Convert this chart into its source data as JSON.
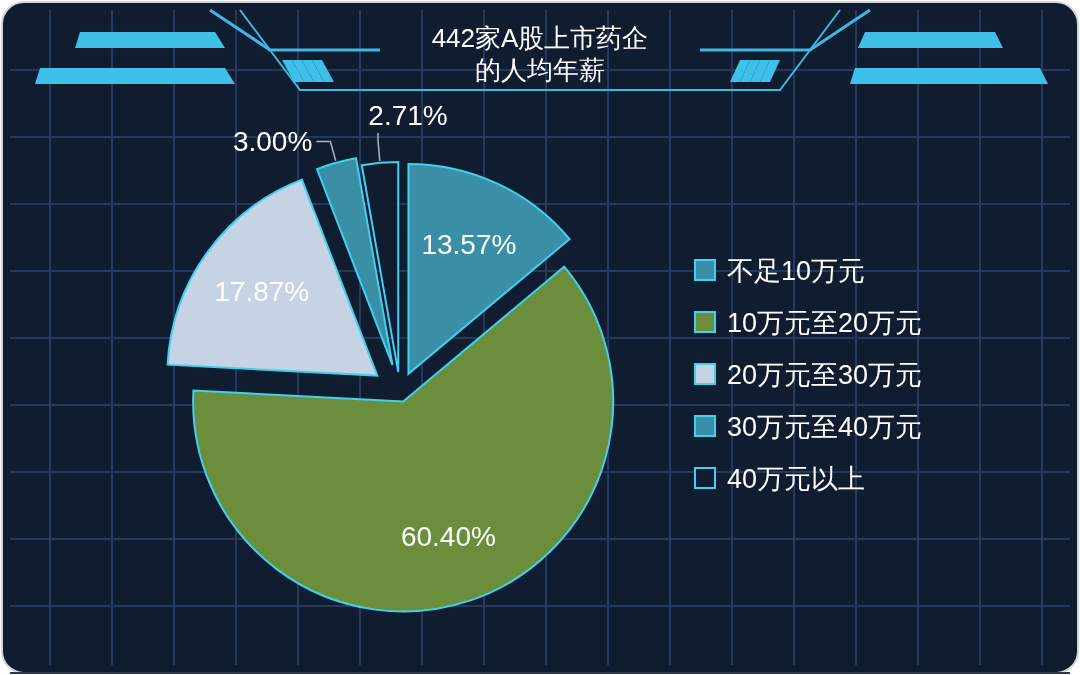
{
  "chart_data": {
    "type": "pie",
    "title": "442家A股上市药企的人均年薪",
    "categories": [
      "不足10万元",
      "10万元至20万元",
      "20万元至30万元",
      "30万元至40万元",
      "40万元以上"
    ],
    "values": [
      13.57,
      60.4,
      17.87,
      3.0,
      2.71
    ],
    "value_labels": [
      "13.57%",
      "60.40%",
      "17.87%",
      "3.00%",
      "2.71%"
    ],
    "colors": [
      "#3a8ea6",
      "#6a8e3c",
      "#c5d3e4",
      "#3a8ea6",
      "#101c30"
    ],
    "legend": "right"
  }
}
